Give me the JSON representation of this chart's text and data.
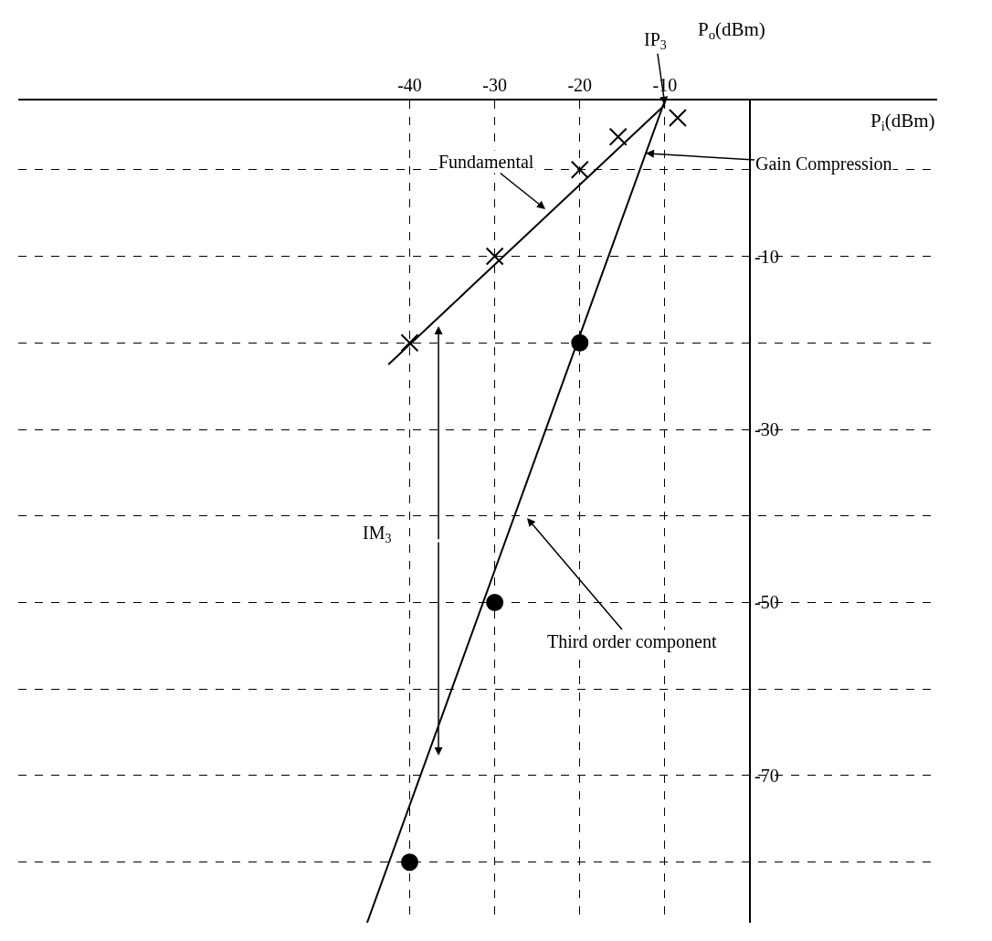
{
  "chart_data": {
    "type": "line",
    "xlabel": "P$_{i}$(dBm)",
    "ylabel": "P$_{o}$(dBm)",
    "xlim": [
      -86,
      22
    ],
    "ylim": [
      -87,
      8
    ],
    "xticks": [
      -40,
      -30,
      -20,
      -10
    ],
    "yticks": [
      {
        "value": 0,
        "label": null
      },
      -10,
      {
        "value": -20,
        "label": null
      },
      -30,
      {
        "value": -40,
        "label": null
      },
      -50,
      {
        "value": -60,
        "label": null
      },
      -70,
      {
        "value": -80,
        "label": null
      }
    ],
    "grid": true,
    "series": [
      {
        "color": "#000000",
        "x": [
          -42.5,
          -10
        ],
        "values": [
          -22.5,
          7.5
        ]
      },
      {
        "type": "scatter",
        "color": "#000000",
        "marker": "cross",
        "x": [
          -40,
          -30,
          -20,
          -15.5,
          -8.5
        ],
        "values": [
          -20,
          -10,
          0,
          3.8,
          6
        ]
      },
      {
        "color": "#000000",
        "x": [
          -45,
          -10
        ],
        "values": [
          -87,
          8
        ]
      },
      {
        "type": "scatter",
        "color": "#000000",
        "marker": "circle",
        "x": [
          -20,
          -30,
          -40
        ],
        "values": [
          -20,
          -50,
          -80
        ]
      }
    ],
    "annotations": [
      {
        "text": "IP$_{3}$",
        "x": -10,
        "y": 7.5
      },
      "Fundamental",
      {
        "text": "Gain Compression",
        "x": -12.25,
        "y": 1.9
      },
      "Third order component",
      "IM$_{3}$"
    ]
  }
}
